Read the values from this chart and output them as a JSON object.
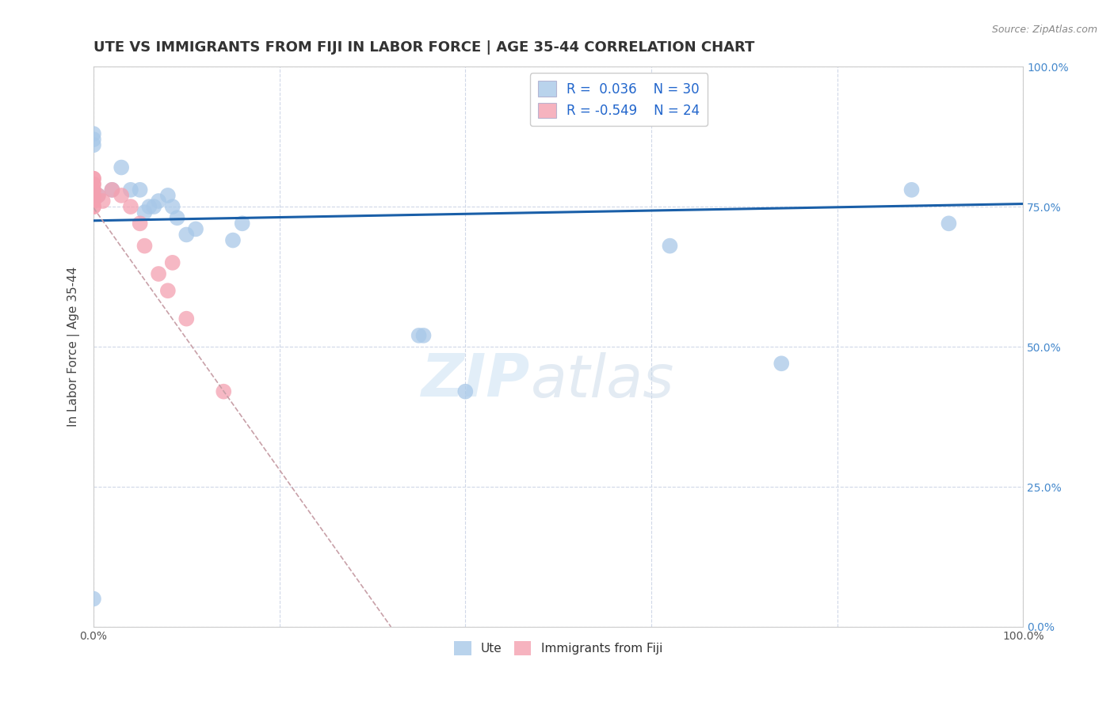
{
  "title": "UTE VS IMMIGRANTS FROM FIJI IN LABOR FORCE | AGE 35-44 CORRELATION CHART",
  "source_text": "Source: ZipAtlas.com",
  "ylabel": "In Labor Force | Age 35-44",
  "xlim": [
    0.0,
    1.0
  ],
  "ylim": [
    0.0,
    1.0
  ],
  "ytick_positions": [
    0.0,
    0.25,
    0.5,
    0.75,
    1.0
  ],
  "ytick_labels": [
    "0.0%",
    "25.0%",
    "50.0%",
    "75.0%",
    "100.0%"
  ],
  "xtick_positions": [
    0.0,
    0.2,
    0.4,
    0.6,
    0.8,
    1.0
  ],
  "xtick_labels": [
    "0.0%",
    "",
    "",
    "",
    "",
    "100.0%"
  ],
  "watermark_zip": "ZIP",
  "watermark_atlas": "atlas",
  "blue_color": "#a8c8e8",
  "pink_color": "#f4a0b0",
  "line_blue": "#1a5fa8",
  "line_pink_dashed": "#c8a0a8",
  "ute_x": [
    0.0,
    0.0,
    0.0,
    0.0,
    0.005,
    0.02,
    0.03,
    0.04,
    0.05,
    0.055,
    0.06,
    0.065,
    0.07,
    0.08,
    0.085,
    0.09,
    0.1,
    0.11,
    0.15,
    0.16,
    0.35,
    0.355,
    0.4,
    0.62,
    0.74,
    0.88,
    0.92
  ],
  "ute_y": [
    0.05,
    0.88,
    0.87,
    0.86,
    0.77,
    0.78,
    0.82,
    0.78,
    0.78,
    0.74,
    0.75,
    0.75,
    0.76,
    0.77,
    0.75,
    0.73,
    0.7,
    0.71,
    0.69,
    0.72,
    0.52,
    0.52,
    0.42,
    0.68,
    0.47,
    0.78,
    0.72
  ],
  "fiji_x": [
    0.0,
    0.0,
    0.0,
    0.0,
    0.0,
    0.0,
    0.0,
    0.0,
    0.0,
    0.0,
    0.0,
    0.0,
    0.005,
    0.01,
    0.02,
    0.03,
    0.04,
    0.05,
    0.055,
    0.07,
    0.08,
    0.085,
    0.1,
    0.14
  ],
  "fiji_y": [
    0.75,
    0.75,
    0.76,
    0.76,
    0.77,
    0.77,
    0.78,
    0.78,
    0.79,
    0.79,
    0.8,
    0.8,
    0.77,
    0.76,
    0.78,
    0.77,
    0.75,
    0.72,
    0.68,
    0.63,
    0.6,
    0.65,
    0.55,
    0.42
  ],
  "background_color": "#ffffff",
  "grid_color": "#d0d8e8",
  "title_fontsize": 13,
  "axis_label_fontsize": 11,
  "tick_fontsize": 10,
  "right_tick_color": "#4488cc",
  "bottom_tick_color": "#555555"
}
